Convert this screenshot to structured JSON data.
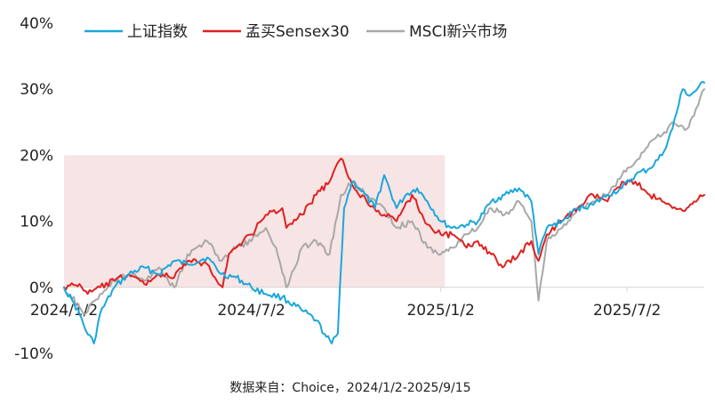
{
  "chart_data": {
    "type": "line",
    "title": "",
    "xlabel": "",
    "ylabel": "",
    "ylim": [
      -10,
      40
    ],
    "y_ticks": [
      "40%",
      "30%",
      "20%",
      "10%",
      "0%",
      "-10%"
    ],
    "y_tick_values": [
      40,
      30,
      20,
      10,
      0,
      -10
    ],
    "x_tick_labels": [
      "2024/1/2",
      "2024/7/2",
      "2025/1/2",
      "2025/7/2"
    ],
    "x_tick_dates": [
      "2024-01-02",
      "2024-07-02",
      "2025-01-02",
      "2025-07-02"
    ],
    "x_range": [
      "2024-01-02",
      "2025-09-15"
    ],
    "grid": false,
    "legend_position": "top",
    "highlight_band": {
      "from": "2024-01-02",
      "to": "2025-01-06",
      "y_from": 0,
      "y_to": 20,
      "color": "#f7e4e4"
    },
    "source_note": "数据来自：Choice，2024/1/2-2025/9/15",
    "series": [
      {
        "name": "上证指数",
        "color": "#1aa7dc",
        "points": [
          [
            "2024-01-02",
            0
          ],
          [
            "2024-01-10",
            -2
          ],
          [
            "2024-01-17",
            -4
          ],
          [
            "2024-01-23",
            -6.5
          ],
          [
            "2024-01-31",
            -8.5
          ],
          [
            "2024-02-06",
            -4
          ],
          [
            "2024-02-20",
            0
          ],
          [
            "2024-03-05",
            2
          ],
          [
            "2024-03-20",
            3
          ],
          [
            "2024-04-03",
            2
          ],
          [
            "2024-04-18",
            4
          ],
          [
            "2024-05-01",
            3.5
          ],
          [
            "2024-05-20",
            4.5
          ],
          [
            "2024-06-03",
            2
          ],
          [
            "2024-06-17",
            1.5
          ],
          [
            "2024-07-02",
            0
          ],
          [
            "2024-07-16",
            -1
          ],
          [
            "2024-08-01",
            -1.5
          ],
          [
            "2024-08-20",
            -3.5
          ],
          [
            "2024-09-03",
            -5
          ],
          [
            "2024-09-13",
            -7.5
          ],
          [
            "2024-09-18",
            -8.5
          ],
          [
            "2024-09-24",
            -7
          ],
          [
            "2024-09-26",
            0
          ],
          [
            "2024-09-30",
            12
          ],
          [
            "2024-10-08",
            16
          ],
          [
            "2024-10-15",
            15
          ],
          [
            "2024-10-30",
            12
          ],
          [
            "2024-11-08",
            17
          ],
          [
            "2024-11-20",
            12
          ],
          [
            "2024-11-29",
            14
          ],
          [
            "2024-12-10",
            15
          ],
          [
            "2024-12-20",
            13
          ],
          [
            "2025-01-02",
            10
          ],
          [
            "2025-01-13",
            9
          ],
          [
            "2025-01-27",
            9.5
          ],
          [
            "2025-02-07",
            10
          ],
          [
            "2025-02-20",
            13
          ],
          [
            "2025-03-05",
            14
          ],
          [
            "2025-03-19",
            15
          ],
          [
            "2025-03-31",
            13
          ],
          [
            "2025-04-07",
            5
          ],
          [
            "2025-04-15",
            9
          ],
          [
            "2025-04-30",
            10
          ],
          [
            "2025-05-15",
            12
          ],
          [
            "2025-05-30",
            12.5
          ],
          [
            "2025-06-13",
            14
          ],
          [
            "2025-06-27",
            15
          ],
          [
            "2025-07-10",
            17
          ],
          [
            "2025-07-24",
            18
          ],
          [
            "2025-08-05",
            20
          ],
          [
            "2025-08-15",
            24
          ],
          [
            "2025-08-25",
            30
          ],
          [
            "2025-09-01",
            29
          ],
          [
            "2025-09-08",
            30
          ],
          [
            "2025-09-15",
            31
          ]
        ]
      },
      {
        "name": "孟买Sensex30",
        "color": "#e02020",
        "points": [
          [
            "2024-01-02",
            0
          ],
          [
            "2024-01-17",
            0.5
          ],
          [
            "2024-01-25",
            -1
          ],
          [
            "2024-02-06",
            0
          ],
          [
            "2024-02-20",
            1
          ],
          [
            "2024-03-05",
            2
          ],
          [
            "2024-03-20",
            0.5
          ],
          [
            "2024-04-03",
            2
          ],
          [
            "2024-04-18",
            1.5
          ],
          [
            "2024-05-01",
            4
          ],
          [
            "2024-05-20",
            3.5
          ],
          [
            "2024-06-04",
            0
          ],
          [
            "2024-06-10",
            5
          ],
          [
            "2024-06-24",
            7
          ],
          [
            "2024-07-02",
            8
          ],
          [
            "2024-07-16",
            11
          ],
          [
            "2024-08-01",
            12
          ],
          [
            "2024-08-05",
            9
          ],
          [
            "2024-08-20",
            11
          ],
          [
            "2024-09-03",
            14
          ],
          [
            "2024-09-16",
            16
          ],
          [
            "2024-09-27",
            19.5
          ],
          [
            "2024-10-08",
            15.5
          ],
          [
            "2024-10-22",
            13
          ],
          [
            "2024-11-08",
            11
          ],
          [
            "2024-11-20",
            10
          ],
          [
            "2024-12-05",
            14
          ],
          [
            "2024-12-20",
            9.5
          ],
          [
            "2025-01-02",
            8
          ],
          [
            "2025-01-13",
            8
          ],
          [
            "2025-01-27",
            6
          ],
          [
            "2025-02-07",
            7
          ],
          [
            "2025-02-20",
            5
          ],
          [
            "2025-03-03",
            3
          ],
          [
            "2025-03-19",
            5
          ],
          [
            "2025-03-31",
            7
          ],
          [
            "2025-04-07",
            4
          ],
          [
            "2025-04-15",
            8
          ],
          [
            "2025-04-30",
            10
          ],
          [
            "2025-05-15",
            12
          ],
          [
            "2025-05-30",
            14
          ],
          [
            "2025-06-13",
            13
          ],
          [
            "2025-06-27",
            16
          ],
          [
            "2025-07-10",
            16
          ],
          [
            "2025-07-24",
            14
          ],
          [
            "2025-08-05",
            13
          ],
          [
            "2025-08-15",
            12
          ],
          [
            "2025-08-29",
            12
          ],
          [
            "2025-09-05",
            13
          ],
          [
            "2025-09-15",
            14
          ]
        ]
      },
      {
        "name": "MSCI新兴市场",
        "color": "#a8a8a8",
        "points": [
          [
            "2024-01-02",
            0
          ],
          [
            "2024-01-17",
            -3
          ],
          [
            "2024-01-23",
            -4
          ],
          [
            "2024-02-06",
            -1
          ],
          [
            "2024-02-20",
            1
          ],
          [
            "2024-03-05",
            2
          ],
          [
            "2024-03-20",
            1
          ],
          [
            "2024-04-03",
            3
          ],
          [
            "2024-04-18",
            0
          ],
          [
            "2024-05-01",
            5
          ],
          [
            "2024-05-20",
            7
          ],
          [
            "2024-06-03",
            4
          ],
          [
            "2024-06-17",
            6
          ],
          [
            "2024-07-02",
            7
          ],
          [
            "2024-07-16",
            9
          ],
          [
            "2024-07-26",
            6
          ],
          [
            "2024-08-05",
            0
          ],
          [
            "2024-08-20",
            6
          ],
          [
            "2024-09-03",
            7
          ],
          [
            "2024-09-16",
            5
          ],
          [
            "2024-09-27",
            14
          ],
          [
            "2024-10-08",
            16
          ],
          [
            "2024-10-22",
            14
          ],
          [
            "2024-11-08",
            12
          ],
          [
            "2024-11-20",
            9
          ],
          [
            "2024-12-05",
            10
          ],
          [
            "2024-12-20",
            6
          ],
          [
            "2025-01-02",
            5
          ],
          [
            "2025-01-13",
            6
          ],
          [
            "2025-01-27",
            8
          ],
          [
            "2025-02-07",
            9
          ],
          [
            "2025-02-20",
            12
          ],
          [
            "2025-03-05",
            11
          ],
          [
            "2025-03-19",
            13
          ],
          [
            "2025-03-31",
            10
          ],
          [
            "2025-04-07",
            -2
          ],
          [
            "2025-04-15",
            7
          ],
          [
            "2025-04-30",
            9
          ],
          [
            "2025-05-15",
            12
          ],
          [
            "2025-05-30",
            13
          ],
          [
            "2025-06-13",
            14
          ],
          [
            "2025-06-27",
            17
          ],
          [
            "2025-07-10",
            19
          ],
          [
            "2025-07-24",
            22
          ],
          [
            "2025-08-05",
            23
          ],
          [
            "2025-08-15",
            25
          ],
          [
            "2025-08-29",
            24
          ],
          [
            "2025-09-05",
            26
          ],
          [
            "2025-09-15",
            30
          ]
        ]
      }
    ]
  }
}
